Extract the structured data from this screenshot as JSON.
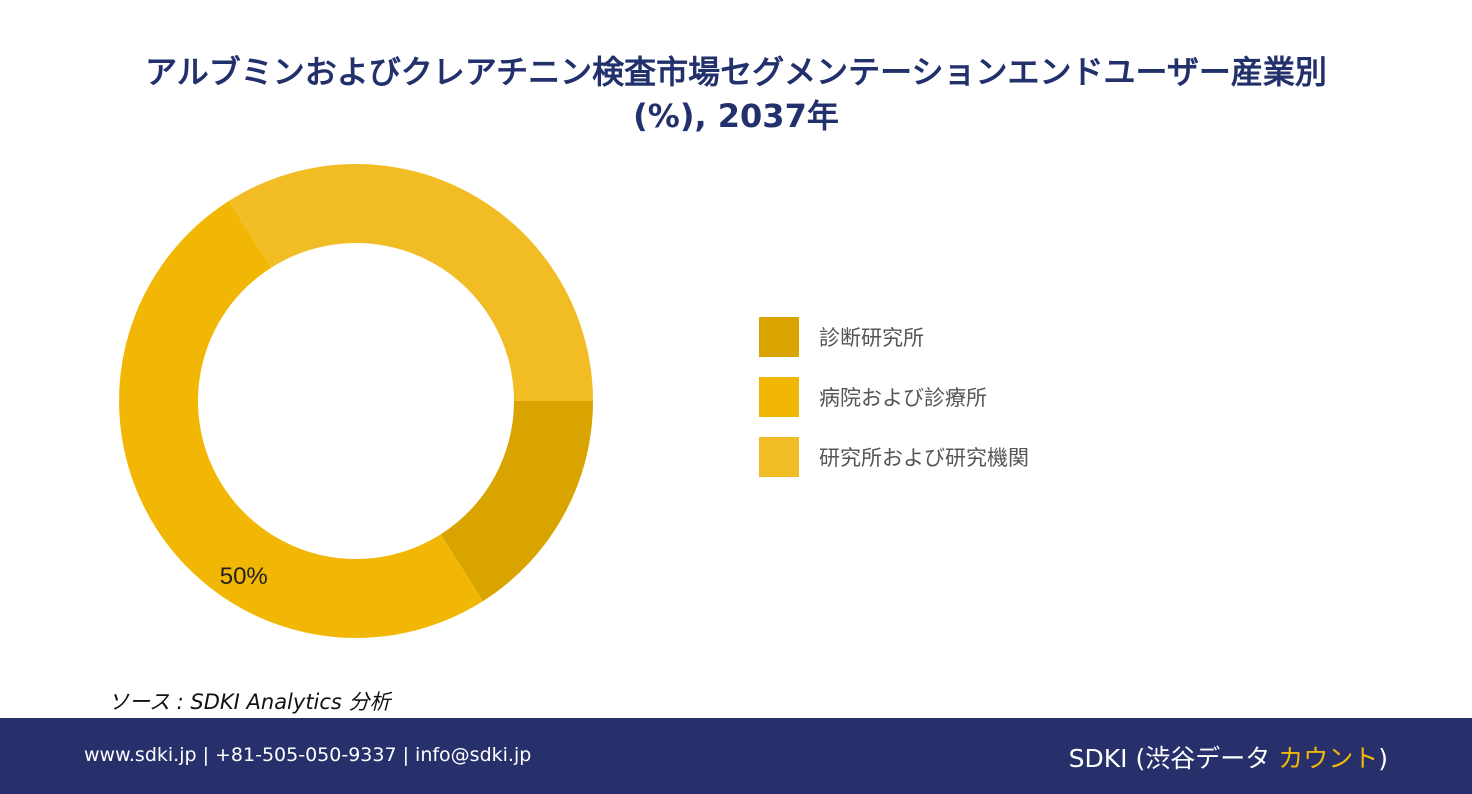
{
  "title": {
    "line1": "アルブミンおよびクレアチニン検査市場セグメンテーションエンドユーザー産業別",
    "line2": "(%), 2037年"
  },
  "chart_data": {
    "type": "pie",
    "donut": true,
    "categories": [
      "診断研究所",
      "病院および診療所",
      "研究所および研究機関"
    ],
    "values": [
      16,
      50,
      34
    ],
    "colors": [
      "#d9a300",
      "#f2b705",
      "#f2bd24"
    ],
    "data_labels": [
      "",
      "50%",
      ""
    ],
    "legend_position": "right"
  },
  "source": "ソース : SDKI Analytics 分析",
  "footer": {
    "contact": "www.sdki.jp | +81-505-050-9337 | info@sdki.jp",
    "brand_main": "SDKI (渋谷データ ",
    "brand_accent": "カウント",
    "brand_end": ")"
  }
}
